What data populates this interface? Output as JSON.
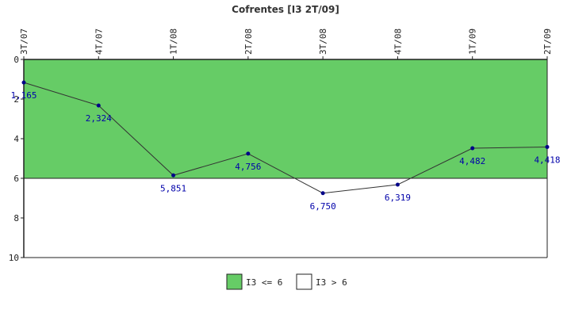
{
  "chart_data": {
    "type": "line",
    "title": "Cofrentes [I3 2T/09]",
    "xlabel": "",
    "ylabel": "",
    "categories": [
      "3T/07",
      "4T/07",
      "1T/08",
      "2T/08",
      "3T/08",
      "4T/08",
      "1T/09",
      "2T/09"
    ],
    "series": [
      {
        "values": [
          1.165,
          2.324,
          5.851,
          4.756,
          6.75,
          6.319,
          4.482,
          4.418
        ]
      }
    ],
    "data_labels": [
      "1,165",
      "2,324",
      "5,851",
      "4,756",
      "6,750",
      "6,319",
      "4,482",
      "4,418"
    ],
    "ylim": [
      0,
      10
    ],
    "y_inverted": true,
    "y_ticks": [
      0,
      2,
      4,
      6,
      8,
      10
    ],
    "y_tick_labels": [
      "0",
      "2",
      "4",
      "6",
      "8",
      "10"
    ],
    "threshold": 6,
    "bands": [
      {
        "name": "I3 <= 6",
        "from": 0,
        "to": 6,
        "color": "#66cc66"
      },
      {
        "name": "I3 > 6",
        "from": 6,
        "to": 10,
        "color": "#ffffff"
      }
    ],
    "legend_position": "bottom-center",
    "grid": false,
    "colors": {
      "line": "#333333",
      "marker": "#000088",
      "label": "#0000aa"
    }
  }
}
